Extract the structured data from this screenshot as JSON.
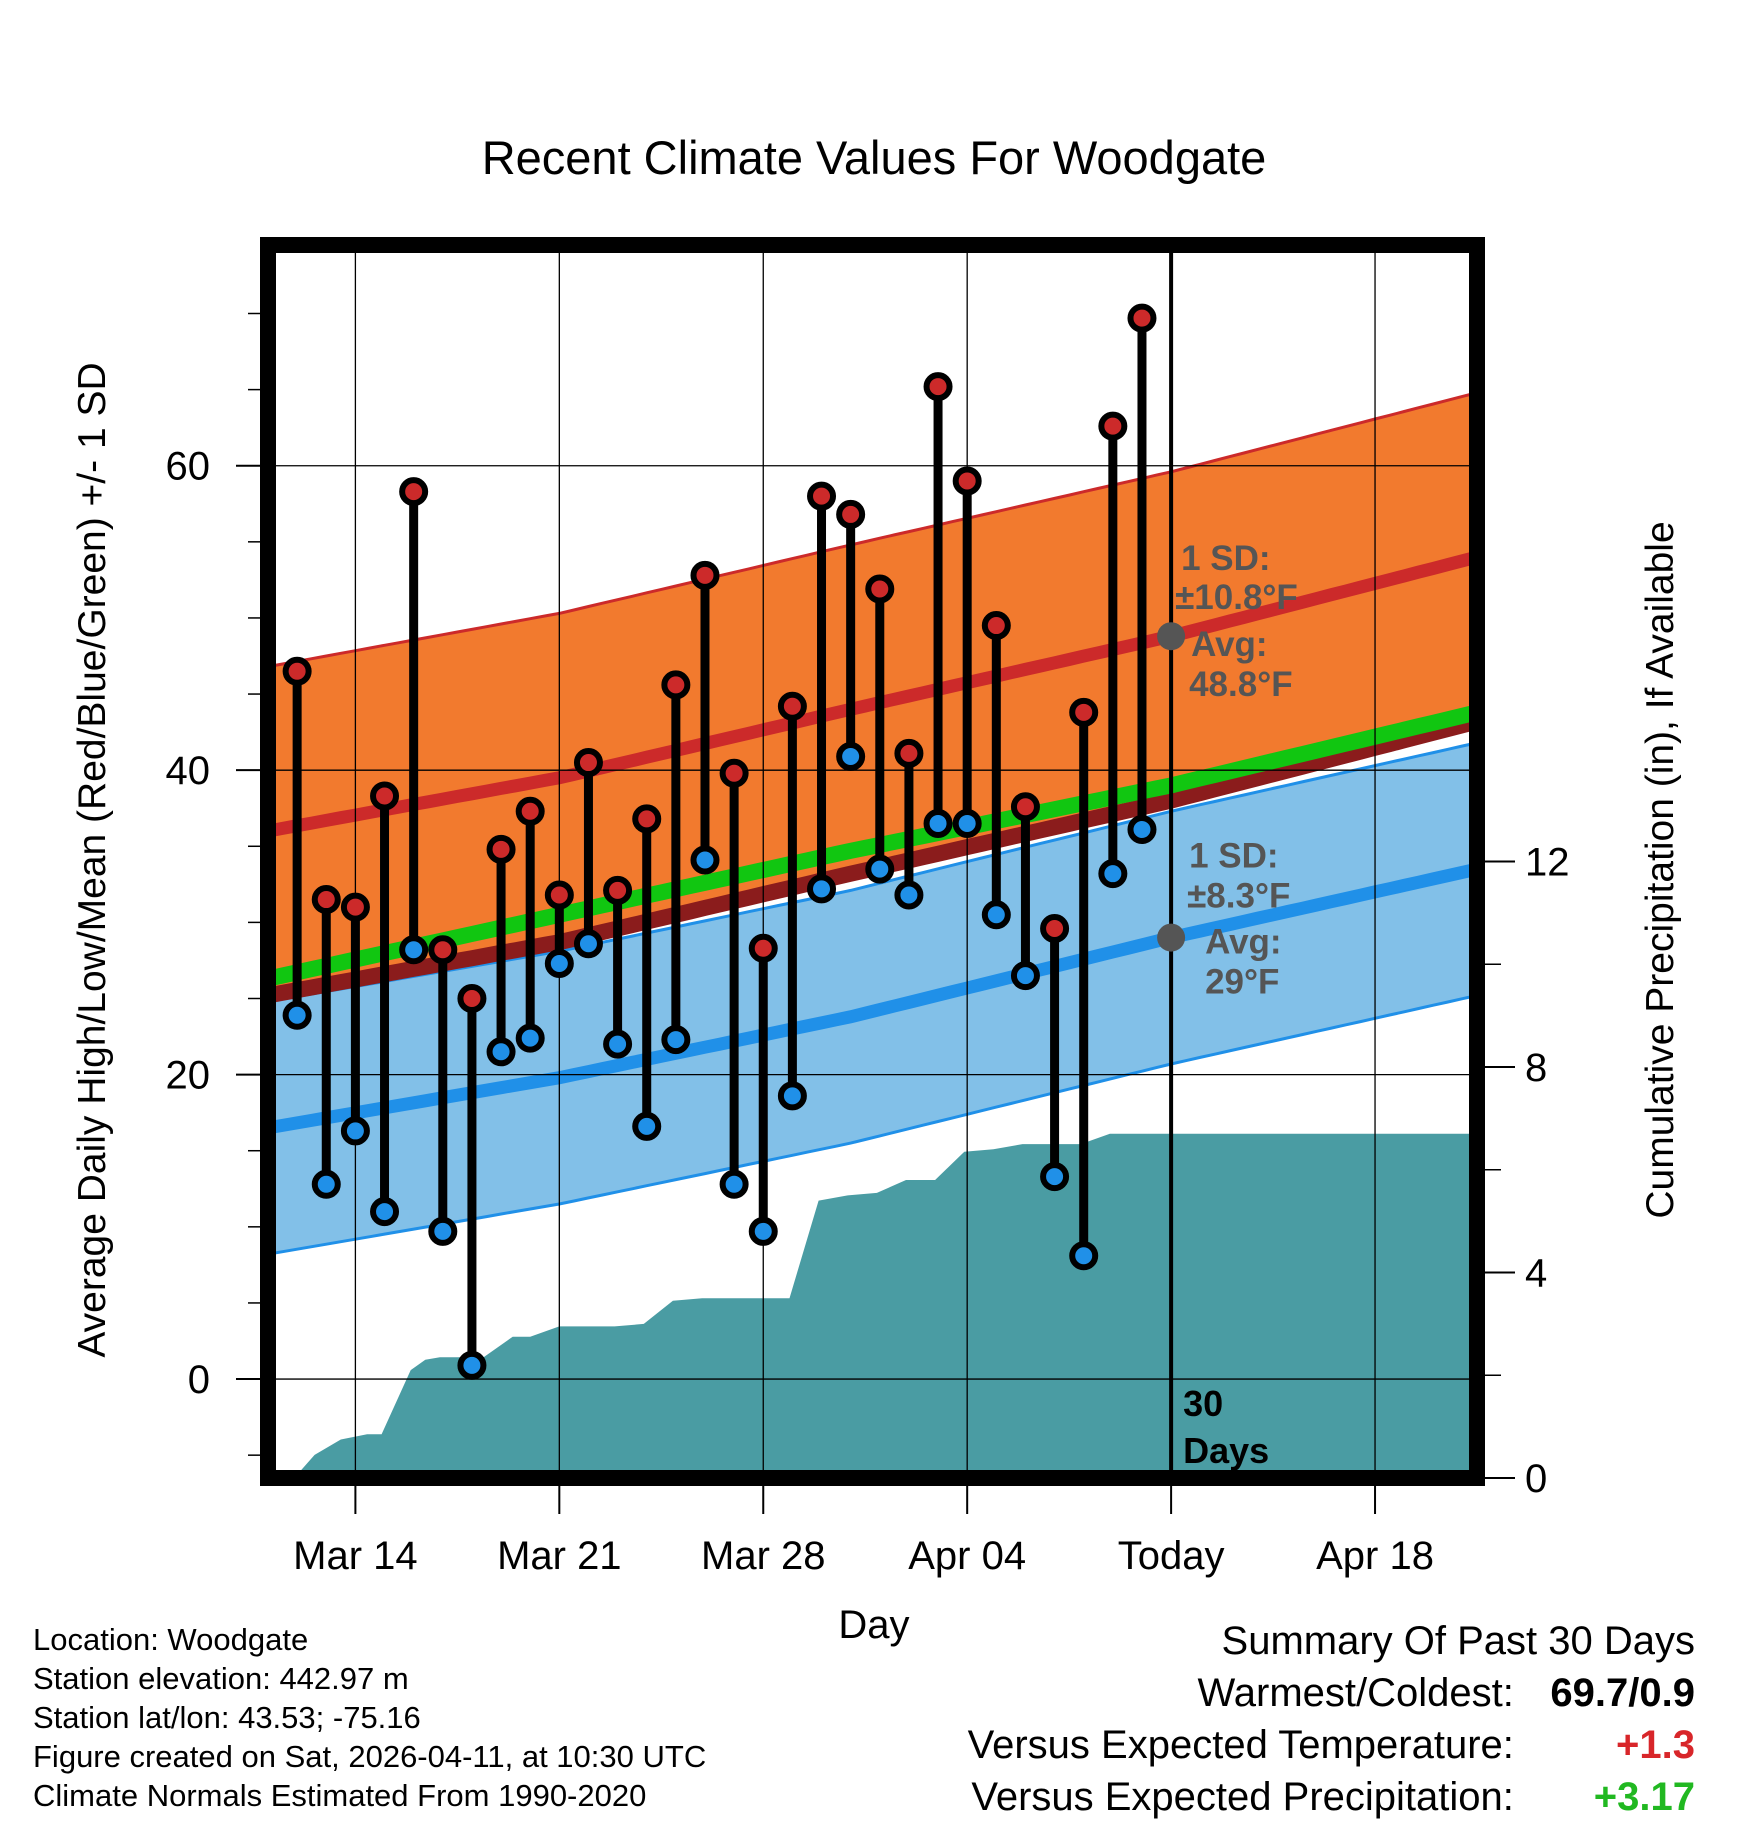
{
  "chart_data": {
    "type": "line",
    "title": "Recent Climate Values For Woodgate",
    "xlabel": "Day",
    "ylabel": "Average Daily High/Low/Mean (Red/Blue/Green) +/- 1 SD",
    "y2label": "Cumulative Precipitation (in), If Available",
    "x_start": "Mar 11",
    "x_end": "Apr 21",
    "x_range_days": [
      0,
      41.5
    ],
    "ylim": [
      -6.5,
      74.5
    ],
    "y_ticks": [
      0,
      20,
      40,
      60
    ],
    "y2lim": [
      0,
      24
    ],
    "y2_ticks": [
      0,
      4,
      8,
      12
    ],
    "x_ticks": [
      {
        "day": 3,
        "label": "Mar 14"
      },
      {
        "day": 10,
        "label": "Mar 21"
      },
      {
        "day": 17,
        "label": "Mar 28"
      },
      {
        "day": 24,
        "label": "Apr 04"
      },
      {
        "day": 31,
        "label": "Today"
      },
      {
        "day": 38,
        "label": "Apr 18"
      }
    ],
    "today_day": 31,
    "today_label": "30 Days",
    "normals": {
      "days": [
        0,
        10,
        20,
        31,
        41.5
      ],
      "high_avg": [
        36,
        39.5,
        44,
        48.8,
        54
      ],
      "high_sd": 10.8,
      "low_avg": [
        16.5,
        19.8,
        23.8,
        29,
        33.5
      ],
      "low_sd": 8.3,
      "mean_avg": [
        26.3,
        30.5,
        34.7,
        39,
        43.8
      ]
    },
    "annotations": {
      "high_sd_label": "1 SD:",
      "high_sd_value": "±10.8°F",
      "high_avg_label": "Avg:",
      "high_avg_value": "48.8°F",
      "low_sd_label": "1 SD:",
      "low_sd_value": "±8.3°F",
      "low_avg_label": "Avg:",
      "low_avg_value": "29°F"
    },
    "series": [
      {
        "name": "Daily High",
        "color": "#cc2a2a",
        "values": [
          46.5,
          31.5,
          31,
          38.3,
          58.3,
          28.2,
          25,
          34.8,
          37.3,
          31.8,
          40.5,
          32.1,
          36.8,
          45.6,
          52.8,
          39.8,
          28.3,
          44.2,
          58,
          56.8,
          51.9,
          41.1,
          65.2,
          59,
          49.5,
          37.6,
          29.6,
          43.8,
          62.6,
          69.7
        ]
      },
      {
        "name": "Daily Low",
        "color": "#2090e8",
        "values": [
          23.9,
          12.8,
          16.3,
          11,
          28.2,
          9.7,
          0.9,
          21.5,
          22.4,
          27.3,
          28.6,
          22,
          16.6,
          22.3,
          34.1,
          12.8,
          9.7,
          18.6,
          32.2,
          40.9,
          33.5,
          31.8,
          36.5,
          36.5,
          30.5,
          26.5,
          13.3,
          8.1,
          33.2,
          36.1
        ]
      }
    ],
    "precipitation": {
      "days": [
        0.9,
        1.6,
        2.5,
        3.4,
        3.9,
        4.9,
        5.4,
        5.9,
        7.4,
        8.4,
        9,
        10,
        10.9,
        11.9,
        12.9,
        13.9,
        14.9,
        15.9,
        16.9,
        17.9,
        18.9,
        19.9,
        20.9,
        21.9,
        22.9,
        23.9,
        24.9,
        25.9,
        26.9,
        27.9,
        28.9,
        29.9,
        30.9,
        41.5
      ],
      "cumulative_in": [
        0,
        0.45,
        0.75,
        0.85,
        0.85,
        2.1,
        2.3,
        2.35,
        2.35,
        2.75,
        2.75,
        2.95,
        2.95,
        2.95,
        3,
        3.45,
        3.5,
        3.5,
        3.5,
        3.5,
        5.4,
        5.5,
        5.55,
        5.8,
        5.8,
        6.35,
        6.4,
        6.5,
        6.5,
        6.5,
        6.7,
        6.7,
        6.7,
        6.7
      ]
    }
  },
  "footer": {
    "location": "Location: Woodgate",
    "elevation": "Station elevation: 442.97 m",
    "latlon": "Station lat/lon: 43.53; -75.16",
    "created": "Figure created on Sat, 2026-04-11, at 10:30 UTC",
    "normals": "Climate Normals Estimated From 1990-2020"
  },
  "summary": {
    "title": "Summary Of Past 30 Days",
    "warmest_coldest_label": "Warmest/Coldest:",
    "warmest_coldest_value": "69.7/0.9",
    "temp_label": "Versus Expected Temperature:",
    "temp_value": "+1.3",
    "precip_label": "Versus Expected Precipitation:",
    "precip_value": "+3.17"
  },
  "colors": {
    "high_band": "#f27a2e",
    "high_line": "#cc2a2a",
    "low_band": "#82c0e8",
    "low_line": "#2090e8",
    "mean_line": "#11c611",
    "precip_fill": "#4a9ca3",
    "frame": "#000000"
  }
}
